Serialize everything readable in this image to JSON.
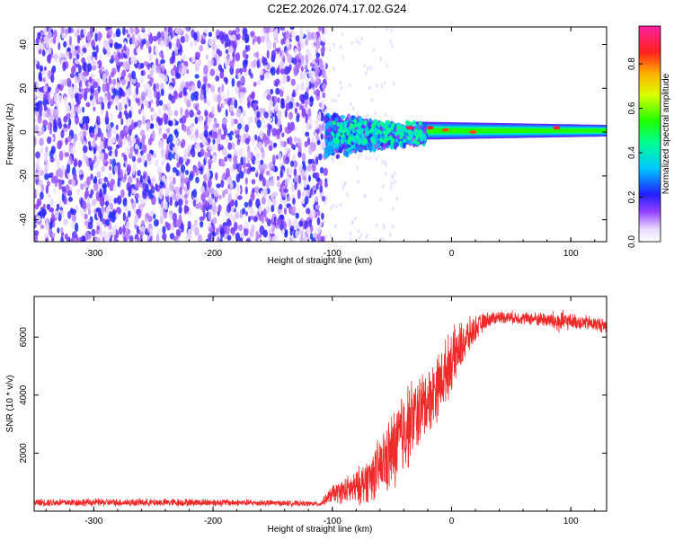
{
  "title": "C2E2.2026.074.17.02.G24",
  "colors": {
    "snr_line": "#ee2a2a",
    "axis": "#000000"
  },
  "chart_data": [
    {
      "type": "heatmap",
      "name": "spectrogram",
      "xlabel": "Height of straight line (km)",
      "ylabel": "Frequency (Hz)",
      "xlim": [
        -350,
        130
      ],
      "ylim": [
        -50,
        48
      ],
      "xticks": [
        -300,
        -200,
        -100,
        0,
        100
      ],
      "yticks": [
        -40,
        -20,
        0,
        20,
        40
      ],
      "colorbar": {
        "label": "Normalized spectral amplitude",
        "range": [
          0.0,
          0.97
        ],
        "ticks": [
          0.0,
          0.2,
          0.4,
          0.6,
          0.8
        ]
      },
      "noise_region_x": [
        -350,
        -105
      ],
      "signal_center_freq_hz": 0,
      "signal_band_halfwidth_hz": [
        10,
        4,
        2.5
      ],
      "signal_band_x": [
        -105,
        -30,
        130
      ],
      "peak_points": [
        {
          "x": -35,
          "y": 2,
          "value": 0.9
        },
        {
          "x": -18,
          "y": 2,
          "value": 0.9
        },
        {
          "x": -5,
          "y": 1,
          "value": 0.85
        },
        {
          "x": 18,
          "y": 0,
          "value": 0.85
        },
        {
          "x": 88,
          "y": 2,
          "value": 0.9
        }
      ]
    },
    {
      "type": "line",
      "name": "snr",
      "xlabel": "Height of straight line (km)",
      "ylabel": "SNR (10 * v/v)",
      "xlim": [
        -350,
        130
      ],
      "ylim": [
        0,
        7400
      ],
      "xticks": [
        -300,
        -200,
        -100,
        0,
        100
      ],
      "yticks": [
        2000,
        4000,
        6000
      ],
      "series": [
        {
          "name": "SNR",
          "x": [
            -350,
            -300,
            -250,
            -200,
            -150,
            -110,
            -100,
            -90,
            -80,
            -70,
            -60,
            -50,
            -40,
            -30,
            -20,
            -10,
            0,
            10,
            20,
            30,
            40,
            60,
            80,
            90,
            100,
            120,
            130
          ],
          "values": [
            300,
            300,
            300,
            300,
            280,
            250,
            600,
            700,
            800,
            1100,
            1500,
            2000,
            2800,
            3300,
            3800,
            4400,
            5200,
            5800,
            6300,
            6600,
            6700,
            6650,
            6600,
            6500,
            6550,
            6450,
            6400
          ],
          "noise": [
            150,
            150,
            150,
            150,
            120,
            100,
            350,
            500,
            700,
            900,
            1200,
            1600,
            1800,
            1500,
            1300,
            1300,
            1200,
            900,
            500,
            300,
            250,
            250,
            300,
            500,
            300,
            300,
            300
          ]
        }
      ]
    }
  ]
}
